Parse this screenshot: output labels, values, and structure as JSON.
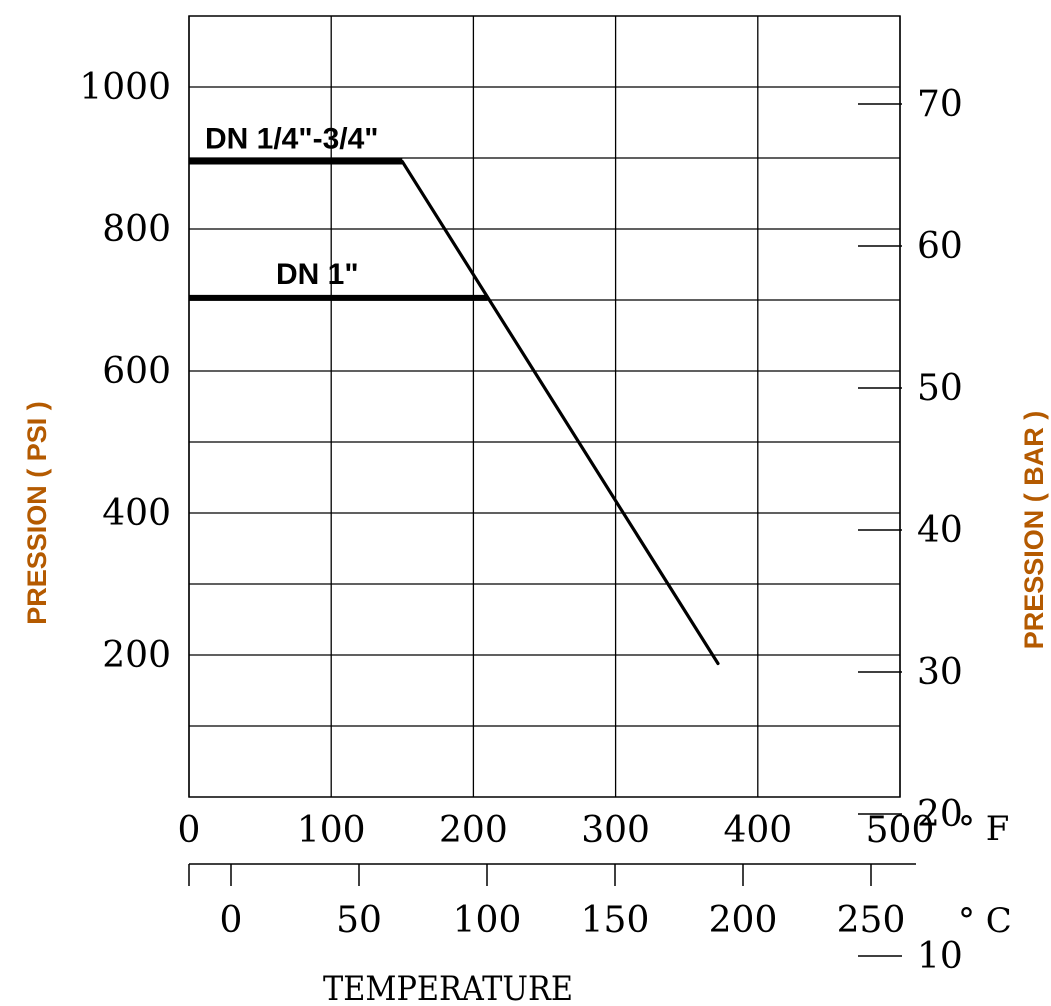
{
  "chart_data": {
    "type": "line",
    "ylabel": "PRESSION ( PSI )",
    "y2label": "PRESSION ( BAR )",
    "xlabel": "TEMPERATURE",
    "x_unit": "° F",
    "x2_unit": "° C",
    "xlim": [
      0,
      500
    ],
    "ylim": [
      0,
      1000
    ],
    "x_ticks": [
      "0",
      "100",
      "200",
      "300",
      "400",
      "500"
    ],
    "y_ticks": [
      "200",
      "400",
      "600",
      "800",
      "1000"
    ],
    "y2_ticks": [
      "10",
      "20",
      "30",
      "40",
      "50",
      "60",
      "70"
    ],
    "x2_ticks": [
      "0",
      "50",
      "100",
      "150",
      "200",
      "250"
    ],
    "grid": true,
    "series": [
      {
        "name": "DN 1/4\"-3/4\"",
        "x": [
          0,
          150,
          372
        ],
        "y": [
          895,
          895,
          188
        ]
      },
      {
        "name": "DN 1\"",
        "x": [
          0,
          210
        ],
        "y": [
          703,
          703
        ]
      }
    ]
  }
}
